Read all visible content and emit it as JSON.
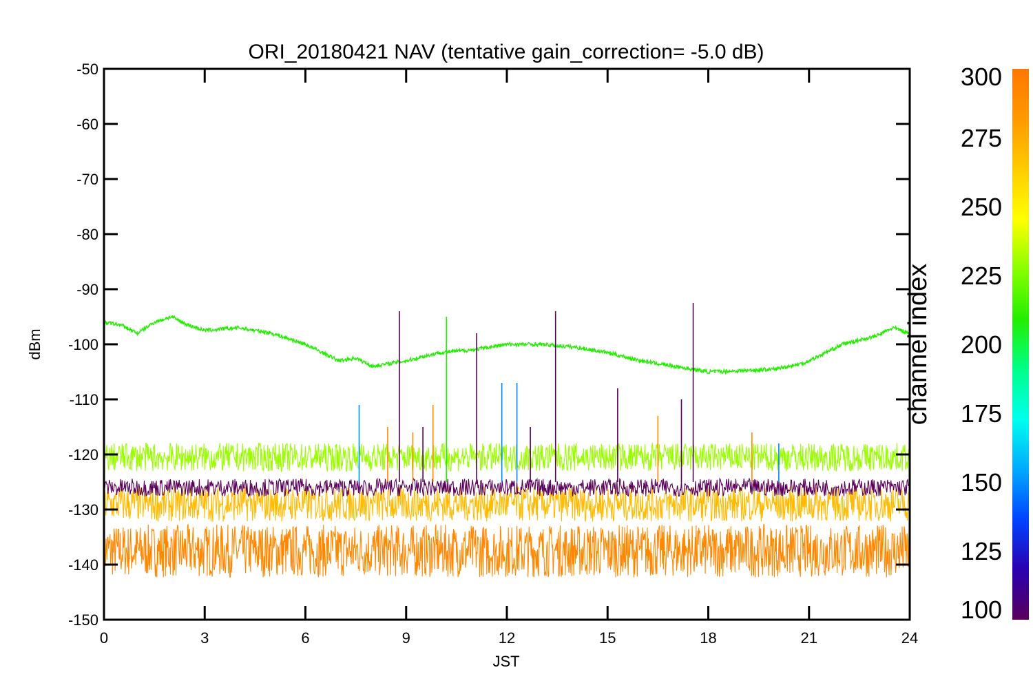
{
  "chart_data": {
    "type": "line",
    "title": "ORI_20180421 NAV (tentative gain_correction= -5.0 dB)",
    "xlabel": "JST",
    "ylabel": "dBm",
    "xlim": [
      0,
      24
    ],
    "ylim": [
      -150,
      -50
    ],
    "x_ticks": [
      0,
      3,
      6,
      9,
      12,
      15,
      18,
      21,
      24
    ],
    "y_ticks": [
      -50,
      -60,
      -70,
      -80,
      -90,
      -100,
      -110,
      -120,
      -130,
      -140,
      -150
    ],
    "grid": false,
    "colorbar": {
      "label": "channel index",
      "range": [
        100,
        300
      ],
      "ticks": [
        300,
        275,
        250,
        225,
        200,
        175,
        150,
        125,
        100
      ],
      "colormap": [
        "#5a005a",
        "#2a00b0",
        "#0044ff",
        "#00aaff",
        "#00ffee",
        "#00ff88",
        "#22ee00",
        "#88ff00",
        "#ffff00",
        "#ffcc00",
        "#ff9900",
        "#ff7700"
      ]
    },
    "series": [
      {
        "color": "#22ee00",
        "x": [
          0,
          0.5,
          1.0,
          1.5,
          2.0,
          2.5,
          3.0,
          4.0,
          5.0,
          6.0,
          7.0,
          7.5,
          8.0,
          9.0,
          10.0,
          11.0,
          12.0,
          13.0,
          14.0,
          15.0,
          16.0,
          17.0,
          18.0,
          19.0,
          20.0,
          20.8,
          21.0,
          22.0,
          23.0,
          23.5,
          24.0
        ],
        "y": [
          -96,
          -96.5,
          -98,
          -96,
          -95,
          -96.5,
          -97.5,
          -97,
          -98,
          -100,
          -103,
          -102.5,
          -104,
          -103,
          -101.5,
          -101,
          -100,
          -100,
          -100.5,
          -101.5,
          -103,
          -104,
          -105,
          -104.8,
          -104.5,
          -103.5,
          -103,
          -100,
          -98.5,
          -97,
          -98
        ]
      },
      {
        "color": "#99ff00",
        "x": [
          0,
          3,
          6,
          9,
          12,
          15,
          18,
          21,
          24
        ],
        "y": [
          -120.5,
          -120.5,
          -120.5,
          -120.5,
          -120.5,
          -120.5,
          -120.5,
          -120.5,
          -120.5
        ]
      },
      {
        "color": "#5a005a",
        "x": [
          0,
          3,
          6,
          9,
          12,
          15,
          18,
          21,
          24
        ],
        "y": [
          -126,
          -126,
          -126,
          -126,
          -126,
          -126,
          -126,
          -126,
          -126
        ]
      },
      {
        "color": "#ffbb00",
        "x": [
          0,
          3,
          6,
          9,
          12,
          15,
          18,
          21,
          24
        ],
        "y": [
          -129,
          -129,
          -129,
          -129,
          -129,
          -129,
          -129,
          -129,
          -129
        ]
      },
      {
        "color": "#ff8800",
        "x": [
          0,
          3,
          6,
          9,
          12,
          15,
          18,
          21,
          24
        ],
        "y": [
          -137.5,
          -137.5,
          -137.5,
          -137.5,
          -137.5,
          -137.5,
          -137.5,
          -137.5,
          -137.5
        ]
      }
    ],
    "spikes": [
      {
        "x": 7.6,
        "top": -111,
        "color": "#0088ff"
      },
      {
        "x": 8.45,
        "top": -115,
        "color": "#ff8800"
      },
      {
        "x": 8.8,
        "top": -94,
        "color": "#5a005a"
      },
      {
        "x": 9.2,
        "top": -116,
        "color": "#ff8800"
      },
      {
        "x": 9.5,
        "top": -115,
        "color": "#5a005a"
      },
      {
        "x": 9.8,
        "top": -111,
        "color": "#ff8800"
      },
      {
        "x": 10.2,
        "top": -95,
        "color": "#22ee00"
      },
      {
        "x": 11.1,
        "top": -98,
        "color": "#5a005a"
      },
      {
        "x": 11.85,
        "top": -107,
        "color": "#0088ff"
      },
      {
        "x": 12.3,
        "top": -107,
        "color": "#0088ff"
      },
      {
        "x": 12.7,
        "top": -115,
        "color": "#5a005a"
      },
      {
        "x": 13.45,
        "top": -94,
        "color": "#5a005a"
      },
      {
        "x": 15.3,
        "top": -108,
        "color": "#5a005a"
      },
      {
        "x": 16.5,
        "top": -113,
        "color": "#ff8800"
      },
      {
        "x": 17.2,
        "top": -110,
        "color": "#5a005a"
      },
      {
        "x": 17.55,
        "top": -92.5,
        "color": "#5a005a"
      },
      {
        "x": 19.3,
        "top": -116,
        "color": "#ff8800"
      },
      {
        "x": 20.1,
        "top": -118,
        "color": "#0088ff"
      }
    ]
  }
}
